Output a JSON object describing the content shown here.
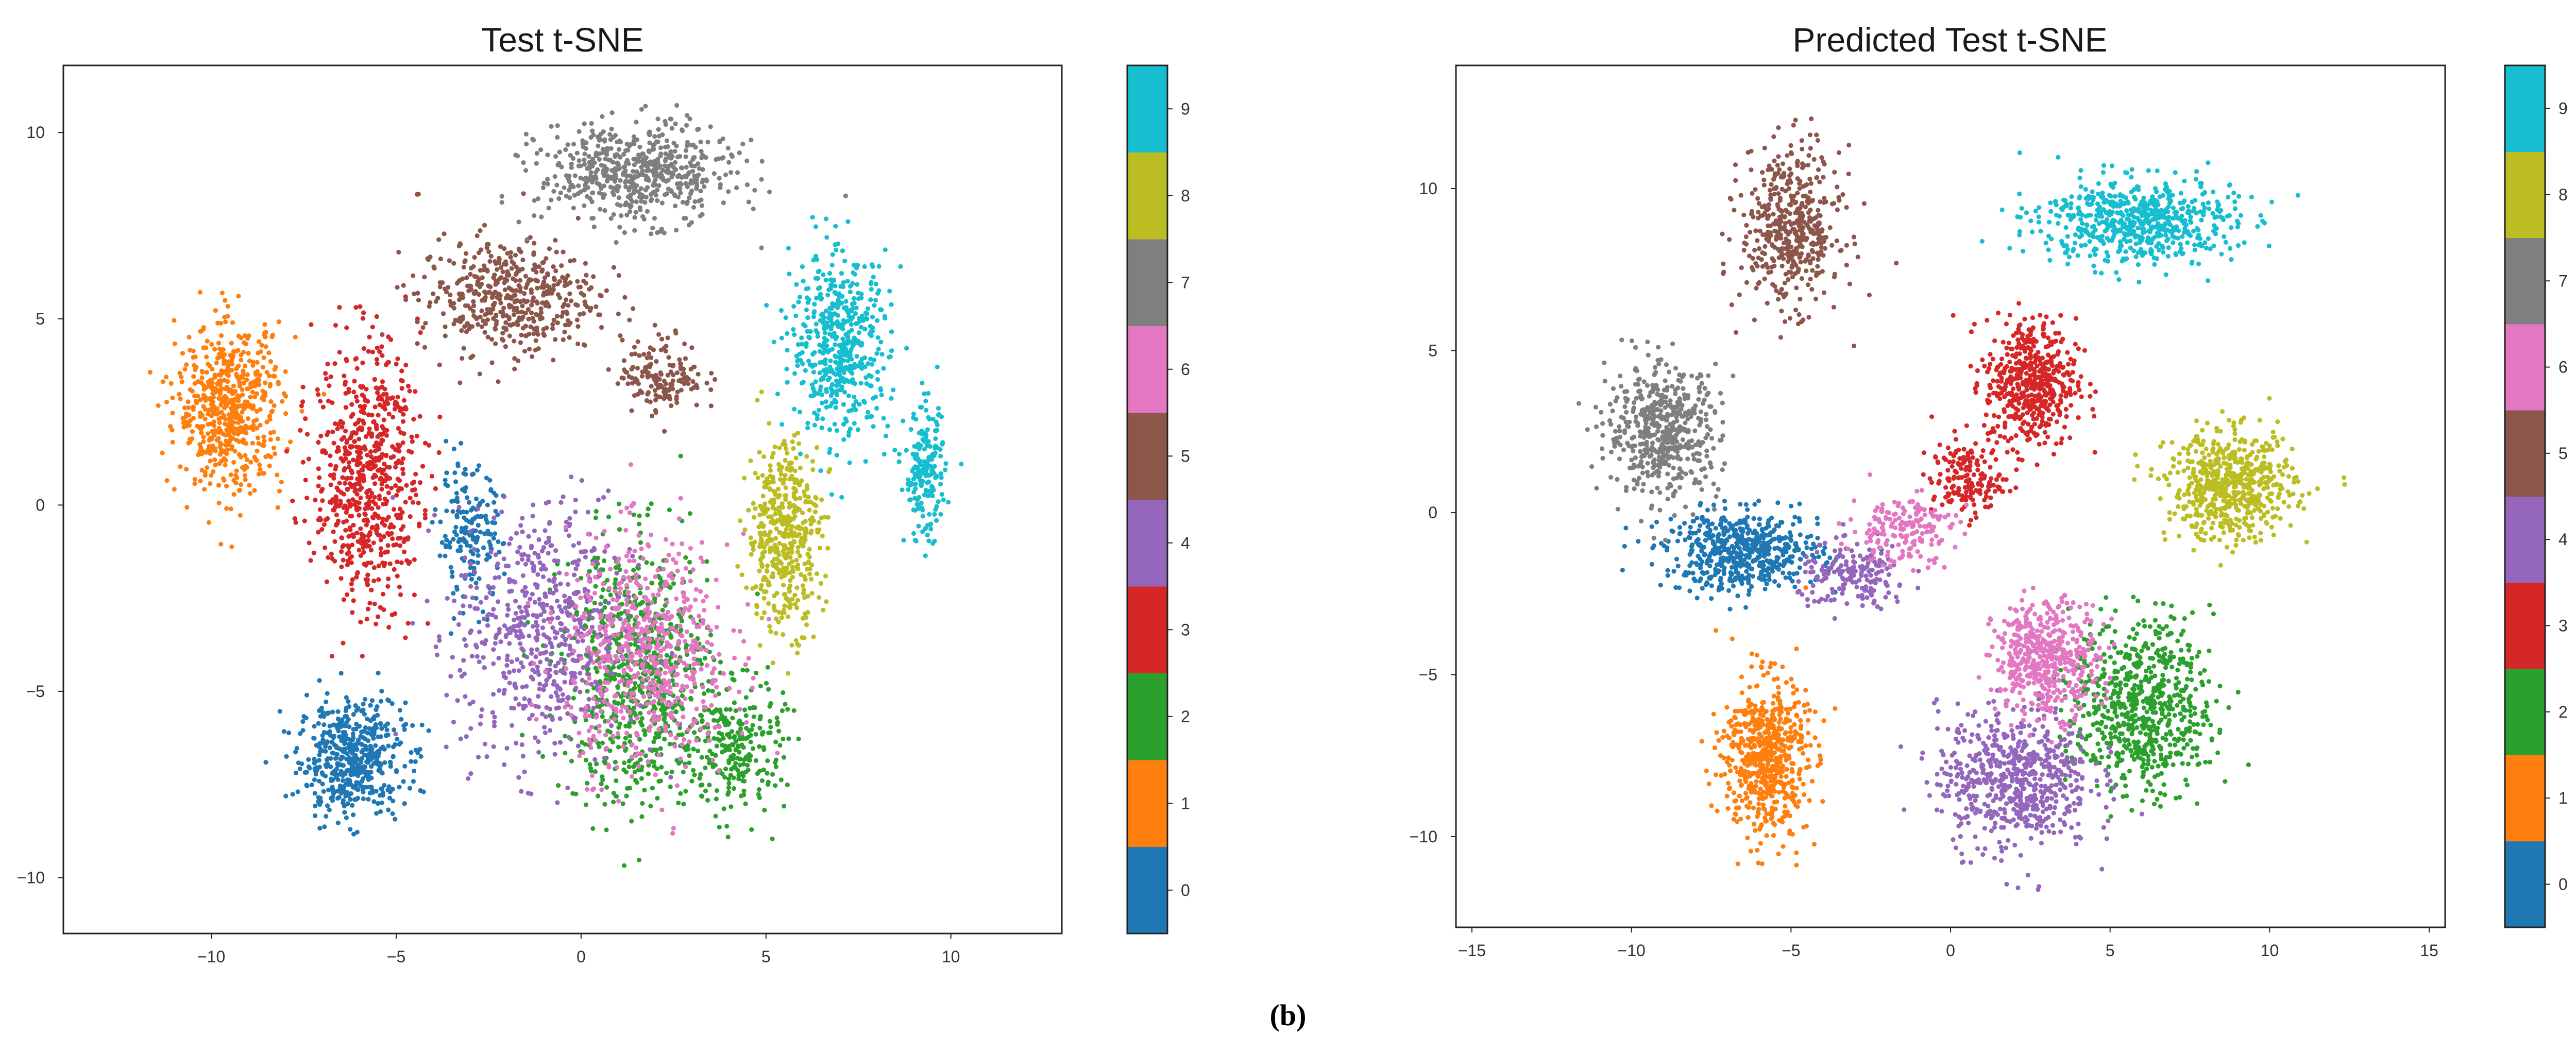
{
  "caption": "(b)",
  "colors": [
    "#1f77b4",
    "#ff7f0e",
    "#2ca02c",
    "#d62728",
    "#9467bd",
    "#8c564b",
    "#e377c2",
    "#7f7f7f",
    "#bcbd22",
    "#17becf"
  ],
  "chart_data": [
    {
      "type": "scatter",
      "title": "Test t-SNE",
      "xlabel": "",
      "ylabel": "",
      "xlim": [
        -14,
        13
      ],
      "ylim": [
        -11.5,
        11.8
      ],
      "xticks": [
        -10,
        -5,
        0,
        5,
        10
      ],
      "yticks": [
        -10,
        -5,
        0,
        5,
        10
      ],
      "colorbar": {
        "ticks": [
          "0",
          "1",
          "2",
          "3",
          "4",
          "5",
          "6",
          "7",
          "8",
          "9"
        ]
      },
      "clusters": [
        {
          "label": 0,
          "center": [
            -6.2,
            -6.8
          ],
          "spread": [
            1.3,
            1.4
          ],
          "points": 520
        },
        {
          "label": 0,
          "center": [
            -3.0,
            -0.8
          ],
          "spread": [
            0.8,
            1.6
          ],
          "points": 180
        },
        {
          "label": 1,
          "center": [
            -9.5,
            2.6
          ],
          "spread": [
            1.3,
            2.0
          ],
          "points": 600
        },
        {
          "label": 2,
          "center": [
            1.5,
            -4.5
          ],
          "spread": [
            1.8,
            3.2
          ],
          "points": 720
        },
        {
          "label": 2,
          "center": [
            4.2,
            -6.5
          ],
          "spread": [
            1.2,
            1.6
          ],
          "points": 260
        },
        {
          "label": 3,
          "center": [
            -5.8,
            0.8
          ],
          "spread": [
            1.3,
            3.2
          ],
          "points": 680
        },
        {
          "label": 4,
          "center": [
            -1.0,
            -3.5
          ],
          "spread": [
            2.2,
            3.2
          ],
          "points": 620
        },
        {
          "label": 5,
          "center": [
            -2.0,
            5.6
          ],
          "spread": [
            2.2,
            1.4
          ],
          "points": 480
        },
        {
          "label": 5,
          "center": [
            2.2,
            3.5
          ],
          "spread": [
            1.0,
            0.9
          ],
          "points": 160
        },
        {
          "label": 6,
          "center": [
            1.8,
            -4.0
          ],
          "spread": [
            2.0,
            2.8
          ],
          "points": 600
        },
        {
          "label": 7,
          "center": [
            1.5,
            8.9
          ],
          "spread": [
            2.4,
            1.2
          ],
          "points": 580
        },
        {
          "label": 8,
          "center": [
            5.5,
            -0.8
          ],
          "spread": [
            0.9,
            2.3
          ],
          "points": 460
        },
        {
          "label": 9,
          "center": [
            7.0,
            4.3
          ],
          "spread": [
            1.2,
            2.2
          ],
          "points": 520
        },
        {
          "label": 9,
          "center": [
            9.3,
            0.8
          ],
          "spread": [
            0.5,
            1.6
          ],
          "points": 200
        }
      ]
    },
    {
      "type": "scatter",
      "title": "Predicted Test t-SNE",
      "xlabel": "",
      "ylabel": "",
      "xlim": [
        -15.5,
        15.5
      ],
      "ylim": [
        -12.8,
        13.8
      ],
      "xticks": [
        -15,
        -10,
        -5,
        0,
        5,
        10,
        15
      ],
      "yticks": [
        -10,
        -5,
        0,
        5,
        10
      ],
      "colorbar": {
        "ticks": [
          "0",
          "1",
          "2",
          "3",
          "4",
          "5",
          "6",
          "7",
          "8",
          "9"
        ]
      },
      "clusters": [
        {
          "label": 0,
          "center": [
            -6.5,
            -1.2
          ],
          "spread": [
            2.2,
            1.1
          ],
          "points": 560
        },
        {
          "label": 1,
          "center": [
            -5.8,
            -7.5
          ],
          "spread": [
            1.2,
            2.2
          ],
          "points": 620
        },
        {
          "label": 2,
          "center": [
            6.0,
            -6.0
          ],
          "spread": [
            2.0,
            2.4
          ],
          "points": 680
        },
        {
          "label": 3,
          "center": [
            2.5,
            4.0
          ],
          "spread": [
            1.3,
            1.8
          ],
          "points": 520
        },
        {
          "label": 3,
          "center": [
            0.5,
            1.0
          ],
          "spread": [
            1.0,
            1.0
          ],
          "points": 160
        },
        {
          "label": 4,
          "center": [
            2.0,
            -8.2
          ],
          "spread": [
            2.2,
            2.0
          ],
          "points": 640
        },
        {
          "label": 4,
          "center": [
            -3.0,
            -2.0
          ],
          "spread": [
            1.6,
            0.9
          ],
          "points": 180
        },
        {
          "label": 5,
          "center": [
            -5.0,
            8.8
          ],
          "spread": [
            1.4,
            2.2
          ],
          "points": 480
        },
        {
          "label": 6,
          "center": [
            3.0,
            -4.5
          ],
          "spread": [
            1.5,
            1.6
          ],
          "points": 480
        },
        {
          "label": 6,
          "center": [
            -1.5,
            -0.5
          ],
          "spread": [
            1.5,
            1.0
          ],
          "points": 180
        },
        {
          "label": 7,
          "center": [
            -9.0,
            2.5
          ],
          "spread": [
            1.6,
            1.8
          ],
          "points": 520
        },
        {
          "label": 8,
          "center": [
            8.8,
            0.8
          ],
          "spread": [
            1.8,
            1.5
          ],
          "points": 600
        },
        {
          "label": 9,
          "center": [
            5.8,
            9.0
          ],
          "spread": [
            2.8,
            1.2
          ],
          "points": 600
        }
      ]
    }
  ]
}
